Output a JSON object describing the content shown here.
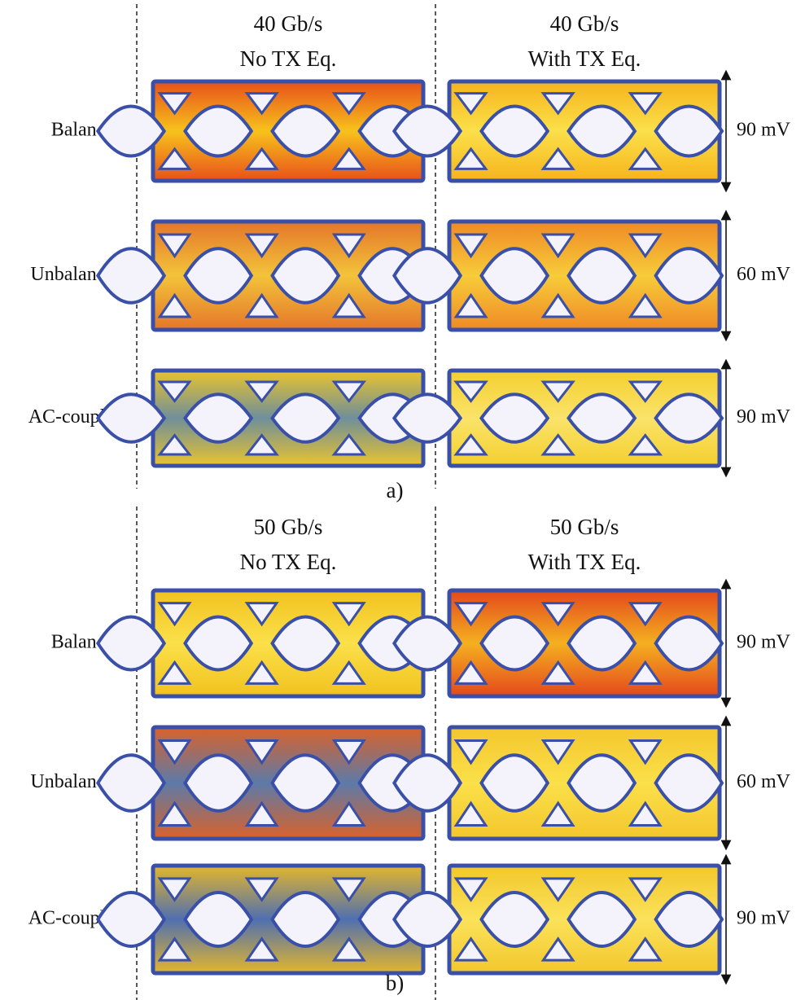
{
  "panels": [
    {
      "label": "a)",
      "columns": [
        {
          "rate": "40 Gb/s",
          "eq": "No TX Eq."
        },
        {
          "rate": "40 Gb/s",
          "eq": "With TX Eq."
        }
      ],
      "rows": [
        "Balanced",
        "Unbalanced",
        "AC-coupled"
      ],
      "scales": [
        "90 mV",
        "60 mV",
        "90 mV"
      ]
    },
    {
      "label": "b)",
      "columns": [
        {
          "rate": "50 Gb/s",
          "eq": "No TX Eq."
        },
        {
          "rate": "50 Gb/s",
          "eq": "With TX Eq."
        }
      ],
      "rows": [
        "Balanced",
        "Unbalanced",
        "AC-coupled"
      ],
      "scales": [
        "90 mV",
        "60 mV",
        "90 mV"
      ]
    }
  ]
}
